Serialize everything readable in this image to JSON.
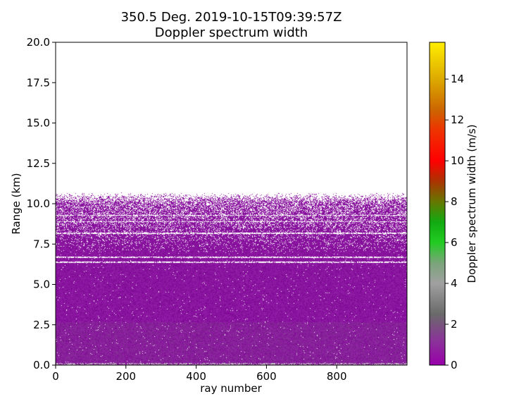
{
  "chart_data": {
    "type": "heatmap",
    "title": [
      "350.5 Deg. 2019-10-15T09:39:57Z",
      "Doppler spectrum width"
    ],
    "xlabel": "ray number",
    "ylabel": "Range (km)",
    "xlim": [
      0,
      1000
    ],
    "ylim": [
      0,
      20
    ],
    "xticks": [
      "0",
      "200",
      "400",
      "600",
      "800"
    ],
    "yticks": [
      "0.0",
      "2.5",
      "5.0",
      "7.5",
      "10.0",
      "12.5",
      "15.0",
      "17.5",
      "20.0"
    ],
    "colorbar": {
      "label": "Doppler spectrum width (m/s)",
      "range": [
        0,
        15.8
      ],
      "ticks": [
        "0",
        "2",
        "4",
        "6",
        "8",
        "10",
        "12",
        "14"
      ],
      "colormap": "homeyer-rainbow-like",
      "stops": [
        {
          "value": 0,
          "color": "#9900aa"
        },
        {
          "value": 1.2,
          "color": "#8a3399"
        },
        {
          "value": 2.5,
          "color": "#6a6a6a"
        },
        {
          "value": 4,
          "color": "#a0a0a0"
        },
        {
          "value": 5,
          "color": "#7aa47a"
        },
        {
          "value": 6,
          "color": "#22cc22"
        },
        {
          "value": 7,
          "color": "#11aa11"
        },
        {
          "value": 8,
          "color": "#667700"
        },
        {
          "value": 9,
          "color": "#aa3300"
        },
        {
          "value": 10,
          "color": "#ff0000"
        },
        {
          "value": 11.5,
          "color": "#ee3300"
        },
        {
          "value": 12.5,
          "color": "#cc6600"
        },
        {
          "value": 14,
          "color": "#ddaa00"
        },
        {
          "value": 15.8,
          "color": "#ffee00"
        }
      ]
    },
    "data_summary": {
      "echo_top_km": 10.3,
      "dominant_color": "#8a11a0",
      "dominant_width_range_ms": [
        0.5,
        1.5
      ],
      "gray_low_level_band_km": [
        0,
        2.7
      ],
      "noisy_top_layer_km": [
        7.0,
        10.6
      ],
      "gap_lines_km": [
        6.4,
        6.7,
        8.2,
        8.9,
        9.3
      ]
    }
  }
}
